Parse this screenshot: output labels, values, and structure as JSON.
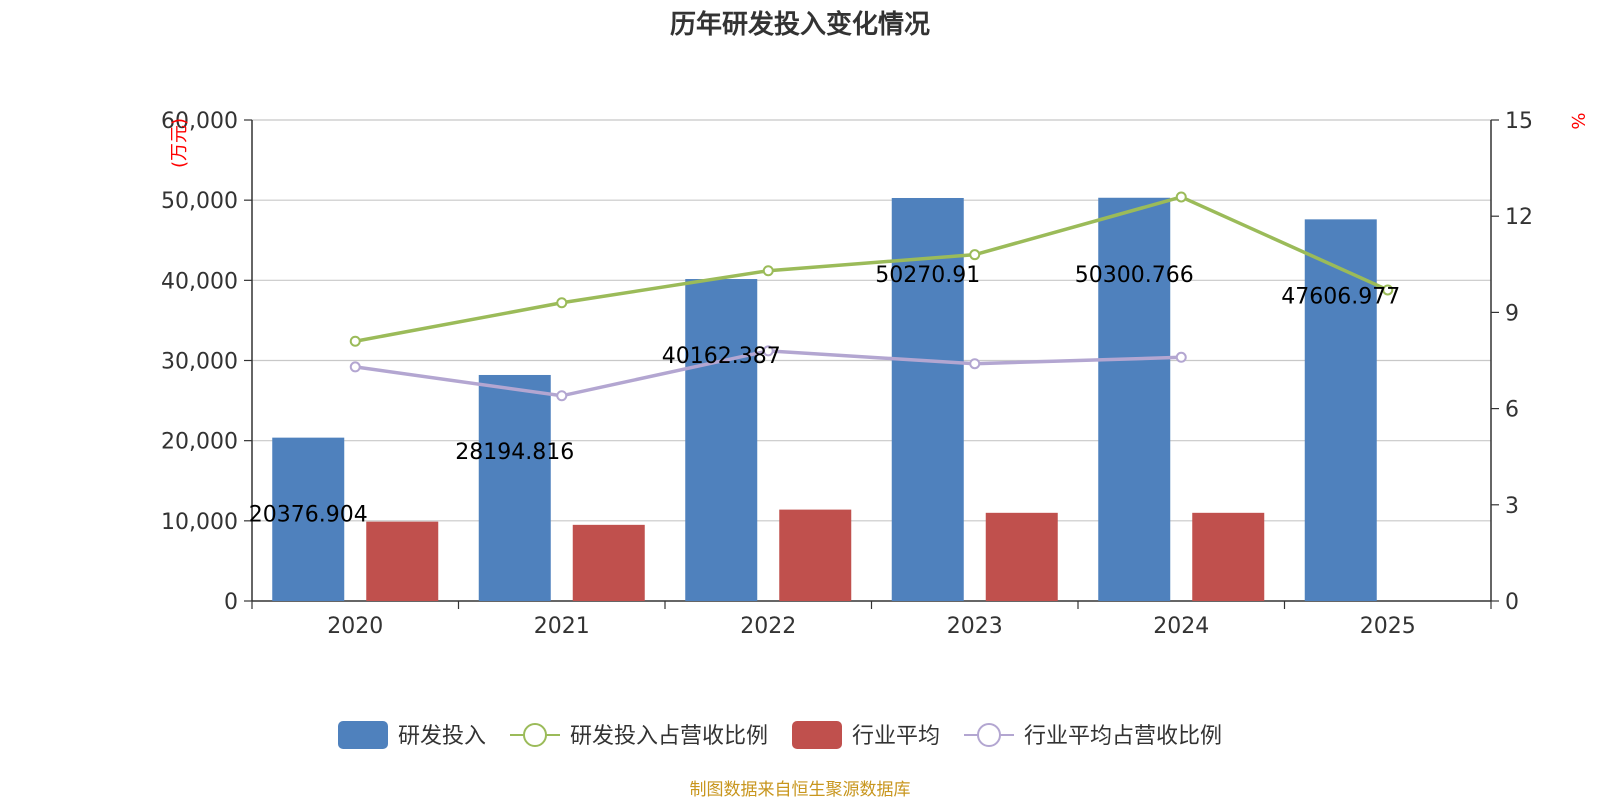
{
  "chart_data": {
    "type": "bar",
    "title": "历年研发投入变化情况",
    "categories": [
      "2020",
      "2021",
      "2022",
      "2023",
      "2024",
      "2025"
    ],
    "y_left": {
      "unit": "(万元)",
      "min": 0,
      "max": 60000,
      "ticks": [
        "0",
        "10,000",
        "20,000",
        "30,000",
        "40,000",
        "50,000",
        "60,000"
      ]
    },
    "y_right": {
      "unit": "%",
      "min": 0,
      "max": 15,
      "ticks": [
        "0",
        "3",
        "6",
        "9",
        "12",
        "15"
      ]
    },
    "grid": true,
    "legend_position": "bottom",
    "series": [
      {
        "name": "研发投入",
        "kind": "bar",
        "axis": "left",
        "color": "#4f81bd",
        "values": [
          20376.904,
          28194.816,
          40162.387,
          50270.91,
          50300.766,
          47606.977
        ],
        "labels": [
          "20376.904",
          "28194.816",
          "40162.387",
          "50270.91",
          "50300.766",
          "47606.977"
        ]
      },
      {
        "name": "研发投入占营收比例",
        "kind": "line",
        "axis": "right",
        "color": "#9bbb59",
        "values": [
          8.1,
          9.3,
          10.3,
          10.8,
          12.6,
          9.7
        ]
      },
      {
        "name": "行业平均",
        "kind": "bar",
        "axis": "left",
        "color": "#c0504d",
        "values": [
          9900,
          9500,
          11400,
          11000,
          11000,
          null
        ]
      },
      {
        "name": "行业平均占营收比例",
        "kind": "line",
        "axis": "right",
        "color": "#b3a6d1",
        "values": [
          7.3,
          6.4,
          7.8,
          7.4,
          7.6,
          null
        ]
      }
    ],
    "source": "制图数据来自恒生聚源数据库"
  }
}
